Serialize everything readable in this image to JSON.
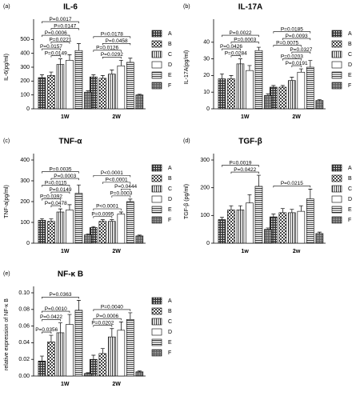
{
  "chart_data": [
    {
      "type": "bar",
      "panel": "(a)",
      "title": "IL-6",
      "ylabel": "IL-6(pg/ml)",
      "categories": [
        "1W",
        "2W"
      ],
      "ylim": [
        0,
        600
      ],
      "yticks": [
        0,
        100,
        200,
        300,
        400,
        500
      ],
      "series": [
        {
          "name": "A",
          "pattern": "dark-check",
          "values": [
            225,
            230
          ],
          "errors": [
            20,
            15
          ]
        },
        {
          "name": "B",
          "pattern": "check",
          "values": [
            240,
            220
          ],
          "errors": [
            25,
            20
          ]
        },
        {
          "name": "C",
          "pattern": "vlines",
          "values": [
            320,
            250
          ],
          "errors": [
            40,
            30
          ]
        },
        {
          "name": "D",
          "pattern": "plain",
          "values": [
            350,
            310
          ],
          "errors": [
            40,
            40
          ]
        },
        {
          "name": "E",
          "pattern": "hlines",
          "values": [
            420,
            335
          ],
          "errors": [
            50,
            30
          ]
        },
        {
          "name": "F",
          "pattern": "dense",
          "values": [
            120,
            100
          ],
          "errors": [
            10,
            5
          ]
        }
      ],
      "annotations": [
        {
          "text": "P=0.0017",
          "category": "1W",
          "between": [
            "A",
            "E"
          ]
        },
        {
          "text": "P=0.0147",
          "category": "1W",
          "between": [
            "B",
            "E"
          ]
        },
        {
          "text": "P=0.0006",
          "category": "1W",
          "between": [
            "A",
            "D"
          ]
        },
        {
          "text": "P=0.0221",
          "category": "1W",
          "between": [
            "B",
            "D"
          ]
        },
        {
          "text": "P=0.0157",
          "category": "1W",
          "between": [
            "A",
            "C"
          ]
        },
        {
          "text": "P=0.0149",
          "category": "1W",
          "between": [
            "B",
            "C"
          ]
        },
        {
          "text": "P=0.0178",
          "category": "2W",
          "between": [
            "A",
            "E"
          ]
        },
        {
          "text": "P=0.0458",
          "category": "2W",
          "between": [
            "B",
            "E"
          ]
        },
        {
          "text": "P=0.0126",
          "category": "2W",
          "between": [
            "A",
            "D"
          ]
        },
        {
          "text": "P=0.0292",
          "category": "2W",
          "between": [
            "B",
            "D"
          ]
        }
      ]
    },
    {
      "type": "bar",
      "panel": "(b)",
      "title": "IL-17A",
      "ylabel": "IL-17A(pg/ml)",
      "categories": [
        "1W",
        "2W"
      ],
      "ylim": [
        0,
        50
      ],
      "yticks": [
        0,
        10,
        20,
        30,
        40
      ],
      "series": [
        {
          "name": "A",
          "pattern": "dark-check",
          "values": [
            18,
            13
          ],
          "errors": [
            3,
            1
          ]
        },
        {
          "name": "B",
          "pattern": "check",
          "values": [
            18,
            13
          ],
          "errors": [
            2,
            1
          ]
        },
        {
          "name": "C",
          "pattern": "vlines",
          "values": [
            27,
            17
          ],
          "errors": [
            3,
            2
          ]
        },
        {
          "name": "D",
          "pattern": "plain",
          "values": [
            23,
            22
          ],
          "errors": [
            3,
            2
          ]
        },
        {
          "name": "E",
          "pattern": "hlines",
          "values": [
            35,
            25
          ],
          "errors": [
            2,
            4
          ]
        },
        {
          "name": "F",
          "pattern": "dense",
          "values": [
            8,
            5
          ],
          "errors": [
            1,
            0.5
          ]
        }
      ],
      "annotations": [
        {
          "text": "P=0.0022",
          "category": "1W",
          "between": [
            "A",
            "E"
          ]
        },
        {
          "text": "P=0.0003",
          "category": "1W",
          "between": [
            "B",
            "E"
          ]
        },
        {
          "text": "P=0.0426",
          "category": "1W",
          "between": [
            "A",
            "C"
          ]
        },
        {
          "text": "P=0.0284",
          "category": "1W",
          "between": [
            "B",
            "C"
          ]
        },
        {
          "text": "P=0.0185",
          "category": "2W",
          "between": [
            "A",
            "E"
          ]
        },
        {
          "text": "P=0.0093",
          "category": "2W",
          "between": [
            "B",
            "E"
          ]
        },
        {
          "text": "P=0.0075",
          "category": "2W",
          "between": [
            "A",
            "D"
          ]
        },
        {
          "text": "P=0.0327",
          "category": "2W",
          "between": [
            "C",
            "E"
          ]
        },
        {
          "text": "P=0.0203",
          "category": "2W",
          "between": [
            "B",
            "D"
          ]
        },
        {
          "text": "P=0.0191",
          "category": "2W",
          "between": [
            "C",
            "D"
          ]
        }
      ]
    },
    {
      "type": "bar",
      "panel": "(c)",
      "title": "TNF-α",
      "ylabel": "TNF-a(pg/ml)",
      "categories": [
        "1W",
        "2W"
      ],
      "ylim": [
        0,
        400
      ],
      "yticks": [
        0,
        100,
        200,
        300,
        400
      ],
      "series": [
        {
          "name": "A",
          "pattern": "dark-check",
          "values": [
            110,
            75
          ],
          "errors": [
            8,
            5
          ]
        },
        {
          "name": "B",
          "pattern": "check",
          "values": [
            105,
            105
          ],
          "errors": [
            12,
            8
          ]
        },
        {
          "name": "C",
          "pattern": "vlines",
          "values": [
            150,
            105
          ],
          "errors": [
            15,
            8
          ]
        },
        {
          "name": "D",
          "pattern": "plain",
          "values": [
            160,
            140
          ],
          "errors": [
            25,
            10
          ]
        },
        {
          "name": "E",
          "pattern": "hlines",
          "values": [
            240,
            200
          ],
          "errors": [
            40,
            12
          ]
        },
        {
          "name": "F",
          "pattern": "dense",
          "values": [
            40,
            35
          ],
          "errors": [
            5,
            4
          ]
        }
      ],
      "annotations": [
        {
          "text": "P=0.0035",
          "category": "1W",
          "between": [
            "A",
            "E"
          ]
        },
        {
          "text": "P=0.0003",
          "category": "1W",
          "between": [
            "B",
            "E"
          ]
        },
        {
          "text": "P=0.0115",
          "category": "1W",
          "between": [
            "A",
            "D"
          ]
        },
        {
          "text": "P=0.0149",
          "category": "1W",
          "between": [
            "B",
            "D"
          ]
        },
        {
          "text": "P=0.0392",
          "category": "1W",
          "between": [
            "A",
            "C"
          ]
        },
        {
          "text": "P=0.0478",
          "category": "1W",
          "between": [
            "B",
            "C"
          ]
        },
        {
          "text": "P<0.0001",
          "category": "2W",
          "between": [
            "A",
            "E"
          ]
        },
        {
          "text": "P<0.0001",
          "category": "2W",
          "between": [
            "B",
            "E"
          ]
        },
        {
          "text": "P=0.0444",
          "category": "2W",
          "between": [
            "D",
            "E"
          ]
        },
        {
          "text": "P=0.0003",
          "category": "2W",
          "between": [
            "C",
            "E"
          ]
        },
        {
          "text": "P<0.0001",
          "category": "2W",
          "between": [
            "A",
            "D"
          ]
        },
        {
          "text": "P=0.0095",
          "category": "2W",
          "between": [
            "A",
            "C"
          ]
        }
      ]
    },
    {
      "type": "bar",
      "panel": "(d)",
      "title": "TGF-β",
      "ylabel": "TGF-β (pg/ml)",
      "categories": [
        "1w",
        "2w"
      ],
      "ylim": [
        0,
        300
      ],
      "yticks": [
        0,
        100,
        200,
        300
      ],
      "series": [
        {
          "name": "A",
          "pattern": "dark-check",
          "values": [
            85,
            95
          ],
          "errors": [
            8,
            10
          ]
        },
        {
          "name": "B",
          "pattern": "check",
          "values": [
            120,
            110
          ],
          "errors": [
            15,
            15
          ]
        },
        {
          "name": "C",
          "pattern": "vlines",
          "values": [
            120,
            110
          ],
          "errors": [
            15,
            12
          ]
        },
        {
          "name": "D",
          "pattern": "plain",
          "values": [
            145,
            115
          ],
          "errors": [
            30,
            20
          ]
        },
        {
          "name": "E",
          "pattern": "hlines",
          "values": [
            205,
            160
          ],
          "errors": [
            40,
            35
          ]
        },
        {
          "name": "F",
          "pattern": "dense",
          "values": [
            50,
            35
          ],
          "errors": [
            5,
            5
          ]
        }
      ],
      "annotations": [
        {
          "text": "P=0.0019",
          "category": "1w",
          "between": [
            "A",
            "E"
          ]
        },
        {
          "text": "P=0.0422",
          "category": "1w",
          "between": [
            "B",
            "E"
          ]
        },
        {
          "text": "P=0.0215",
          "category": "2w",
          "between": [
            "A",
            "E"
          ]
        }
      ]
    },
    {
      "type": "bar",
      "panel": "(e)",
      "title": "NF-κ B",
      "ylabel": "relative expression of NF-κ B",
      "categories": [
        "1W",
        "2W"
      ],
      "ylim": [
        0,
        0.1
      ],
      "yticks": [
        {
          "value": 0,
          "label": "0.00"
        },
        {
          "value": 0.02,
          "label": "0.02"
        },
        {
          "value": 0.04,
          "label": "0.04"
        },
        {
          "value": 0.06,
          "label": "0.06"
        },
        {
          "value": 0.08,
          "label": "0.08"
        },
        {
          "value": 0.1,
          "label": "0.10"
        }
      ],
      "series": [
        {
          "name": "A",
          "pattern": "dark-check",
          "values": [
            0.018,
            0.02
          ],
          "errors": [
            0.006,
            0.005
          ]
        },
        {
          "name": "B",
          "pattern": "check",
          "values": [
            0.041,
            0.027
          ],
          "errors": [
            0.008,
            0.006
          ]
        },
        {
          "name": "C",
          "pattern": "vlines",
          "values": [
            0.052,
            0.047
          ],
          "errors": [
            0.012,
            0.01
          ]
        },
        {
          "name": "D",
          "pattern": "plain",
          "values": [
            0.062,
            0.055
          ],
          "errors": [
            0.012,
            0.01
          ]
        },
        {
          "name": "E",
          "pattern": "hlines",
          "values": [
            0.079,
            0.068
          ],
          "errors": [
            0.012,
            0.008
          ]
        },
        {
          "name": "F",
          "pattern": "dense",
          "values": [
            0.003,
            0.005
          ],
          "errors": [
            0.001,
            0.001
          ]
        }
      ],
      "annotations": [
        {
          "text": "P=0.0363",
          "category": "1W",
          "between": [
            "A",
            "E"
          ]
        },
        {
          "text": "P=0.0010",
          "category": "1W",
          "between": [
            "A",
            "D"
          ]
        },
        {
          "text": "P=0.0422",
          "category": "1W",
          "between": [
            "A",
            "C"
          ]
        },
        {
          "text": "P=0.0356",
          "category": "1W",
          "between": [
            "A",
            "B"
          ]
        },
        {
          "text": "P=0.0040",
          "category": "2W",
          "between": [
            "A",
            "E"
          ]
        },
        {
          "text": "P=0.0006",
          "category": "2W",
          "between": [
            "A",
            "D"
          ]
        },
        {
          "text": "P=0.0202",
          "category": "2W",
          "between": [
            "A",
            "C"
          ]
        }
      ]
    }
  ]
}
